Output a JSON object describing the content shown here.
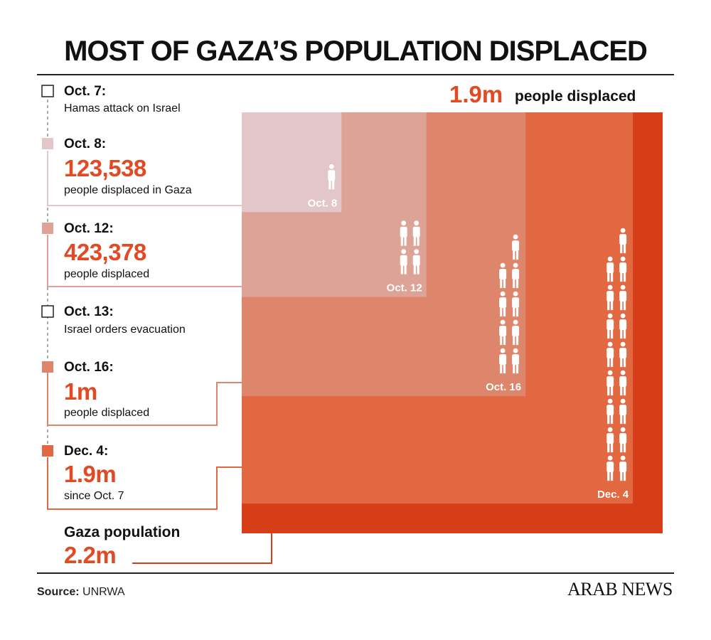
{
  "title": "MOST OF GAZA’S POPULATION DISPLACED",
  "headline": {
    "value": "1.9m",
    "label": "people displaced"
  },
  "timeline": [
    {
      "date": "Oct. 7:",
      "text": "Hamas attack on Israel"
    },
    {
      "date": "Oct. 8:",
      "value": "123,538",
      "text": "people displaced in Gaza"
    },
    {
      "date": "Oct. 12:",
      "value": "423,378",
      "text": "people displaced"
    },
    {
      "date": "Oct. 13:",
      "text": "Israel orders evacuation"
    },
    {
      "date": "Oct. 16:",
      "value": "1m",
      "text": "people displaced"
    },
    {
      "date": "Dec. 4:",
      "value": "1.9m",
      "text": "since Oct. 7"
    }
  ],
  "population": {
    "label": "Gaza population",
    "value": "2.2m"
  },
  "source": {
    "label": "Source:",
    "value": "UNRWA"
  },
  "logo": "ARAB NEWS",
  "chart_data": {
    "type": "area",
    "title": "MOST OF GAZA’S POPULATION DISPLACED",
    "unit": "people",
    "total": {
      "label": "Gaza population",
      "value": 2200000
    },
    "series": [
      {
        "name": "Oct. 8",
        "value": 123538,
        "icons": 1,
        "color": "#e2c6c9"
      },
      {
        "name": "Oct. 12",
        "value": 423378,
        "icons": 4,
        "color": "#dda396"
      },
      {
        "name": "Oct. 16",
        "value": 1000000,
        "icons": 9,
        "color": "#de866b"
      },
      {
        "name": "Dec. 4",
        "value": 1900000,
        "icons": 17,
        "color": "#e26842"
      }
    ],
    "total_color": "#d63e17"
  }
}
